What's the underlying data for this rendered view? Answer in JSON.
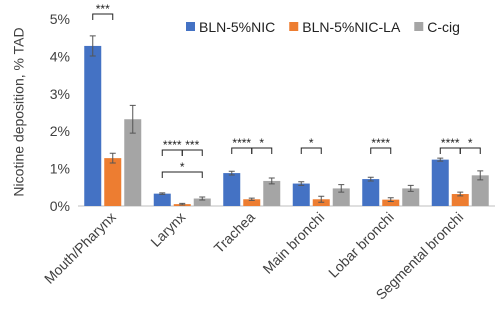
{
  "chart_data": {
    "type": "bar",
    "y_label": "Nicotine deposition, % TAD",
    "categories": [
      "Mouth/Pharynx",
      "Larynx",
      "Trachea",
      "Main bronchi",
      "Lobar bronchi",
      "Segmental bronchi"
    ],
    "series": [
      {
        "name": "BLN-5%NIC",
        "color": "#4472c4",
        "values": [
          4.28,
          0.33,
          0.88,
          0.6,
          0.72,
          1.24
        ],
        "errors": [
          0.27,
          0.02,
          0.05,
          0.05,
          0.05,
          0.04
        ]
      },
      {
        "name": "BLN-5%NIC-LA",
        "color": "#ed7d31",
        "values": [
          1.28,
          0.05,
          0.18,
          0.18,
          0.17,
          0.32
        ],
        "errors": [
          0.13,
          0.02,
          0.03,
          0.08,
          0.05,
          0.05
        ]
      },
      {
        "name": "C-cig",
        "color": "#a5a5a5",
        "values": [
          2.32,
          0.2,
          0.67,
          0.47,
          0.47,
          0.82
        ],
        "errors": [
          0.37,
          0.04,
          0.08,
          0.1,
          0.08,
          0.12
        ]
      }
    ],
    "ylim": [
      0,
      5
    ],
    "yticks": [
      {
        "value": 0,
        "label": "0%"
      },
      {
        "value": 1,
        "label": "1%"
      },
      {
        "value": 2,
        "label": "2%"
      },
      {
        "value": 3,
        "label": "3%"
      },
      {
        "value": 4,
        "label": "4%"
      },
      {
        "value": 5,
        "label": "5%"
      }
    ],
    "legend": "top-right",
    "annotations": [
      "***",
      "****",
      "***",
      "*",
      "****",
      "*",
      "*",
      "****",
      "****",
      "*"
    ]
  }
}
